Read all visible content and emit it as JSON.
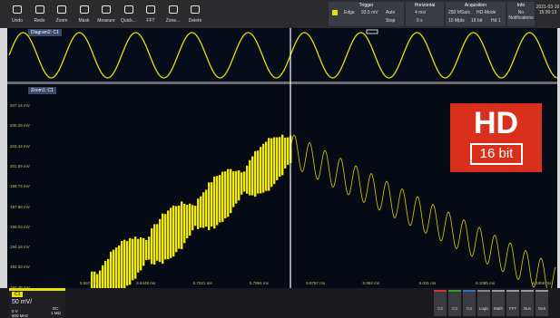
{
  "toolbar": [
    "Undo",
    "Redo",
    "Zoom",
    "Mask",
    "Measure",
    "Quick...",
    "FFT",
    "Zone...",
    "Delete"
  ],
  "trigger": {
    "title": "Trigger",
    "type": "Edge",
    "level": "93.5 mV",
    "mode": "Auto",
    "state": "Stop"
  },
  "horizontal": {
    "title": "Horizontal",
    "scale": "4 ms/",
    "position": "0 s"
  },
  "acquisition": {
    "title": "Acquisition",
    "rate": "250 MSa/s",
    "mode": "HD-Mode",
    "points": "10 Mpts",
    "bits": "16 bit",
    "filter": "Hd 1"
  },
  "info": {
    "title": "Info",
    "message": "No Notifications"
  },
  "datetime": {
    "date": "2021-03-16",
    "time": "15:30:13"
  },
  "overview": {
    "label": "Diagram2: C1"
  },
  "zoom": {
    "label": "Zoom1: C1",
    "y_labels": [
      "207.14 mV",
      "205.29 mV",
      "203.44 mV",
      "201.59 mV",
      "199.74 mV",
      "197.88 mV",
      "196.03 mV",
      "194.18 mV",
      "192.33 mV",
      "190.48 mV"
    ],
    "x_labels": [
      "5.5674 ms",
      "5.6448 ms",
      "5.7221 ms",
      "5.7994 ms",
      "5.8767 ms",
      "5.954 ms",
      "6.031 ms",
      "6.1085 ms",
      "6.1858 ms"
    ]
  },
  "channel": {
    "name": "C1",
    "scale": "50 mV/",
    "offset": "0 V",
    "bandwidth": "500 MHz",
    "coupling": "DC",
    "impedance": "1 MΩ"
  },
  "buttons": [
    "C2",
    "C3",
    "C4",
    "Logic",
    "Math",
    "FFT",
    "Bus",
    "Gen"
  ],
  "badge": {
    "text": "HD",
    "bits": "16 bit"
  }
}
